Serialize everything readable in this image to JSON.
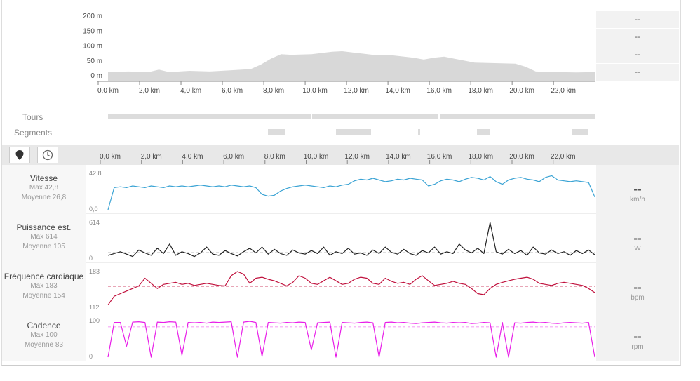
{
  "summary": {
    "values": [
      "--",
      "--",
      "--",
      "--"
    ]
  },
  "elevation": {
    "ytick_labels": [
      "200 m",
      "150 m",
      "100 m",
      "50 m",
      "0 m"
    ],
    "xtick_labels": [
      "0,0 km",
      "2,0 km",
      "4,0 km",
      "6,0 km",
      "8,0 km",
      "10,0 km",
      "12,0 km",
      "14,0 km",
      "16,0 km",
      "18,0 km",
      "20,0 km",
      "22,0 km"
    ],
    "fill_color": "#d8d8d8"
  },
  "laps": {
    "label": "Tours"
  },
  "segments": {
    "label": "Segments"
  },
  "toolbar": {
    "distance_icon": "map-pin-icon",
    "time_icon": "clock-icon",
    "xtick_labels": [
      "0,0 km",
      "2,0 km",
      "4,0 km",
      "6,0 km",
      "8,0 km",
      "10,0 km",
      "12,0 km",
      "14,0 km",
      "16,0 km",
      "18,0 km",
      "20,0 km",
      "22,0 km"
    ]
  },
  "metrics": [
    {
      "title": "Vitesse",
      "max": "Max 42,8",
      "avg": "Moyenne 26,8",
      "axis_top": "42,8",
      "axis_bottom": "0,0",
      "current": "--",
      "unit": "km/h",
      "color": "#3aa3d4"
    },
    {
      "title": "Puissance est.",
      "max": "Max 614",
      "avg": "Moyenne 105",
      "axis_top": "614",
      "axis_bottom": "0",
      "current": "--",
      "unit": "W",
      "color": "#222222"
    },
    {
      "title": "Fréquence cardiaque",
      "max": "Max 183",
      "avg": "Moyenne 154",
      "axis_top": "183",
      "axis_bottom": "112",
      "current": "--",
      "unit": "bpm",
      "color": "#c0103c"
    },
    {
      "title": "Cadence",
      "max": "Max 100",
      "avg": "Moyenne 83",
      "axis_top": "100",
      "axis_bottom": "0",
      "current": "--",
      "unit": "rpm",
      "color": "#e81ee8"
    }
  ],
  "chart_data": [
    {
      "type": "area",
      "xlabel": "",
      "ylabel": "",
      "xlim": [
        0,
        23.9
      ],
      "ylim": [
        0,
        200
      ],
      "x": [
        0,
        1,
        2,
        2.5,
        3,
        4,
        5,
        6,
        7,
        7.5,
        8,
        8.5,
        9,
        10,
        11,
        11.5,
        12,
        13,
        14,
        15,
        15.5,
        16,
        16.5,
        17,
        18,
        19,
        20,
        20.5,
        21,
        22,
        23,
        23.9
      ],
      "y": [
        10,
        12,
        10,
        18,
        10,
        14,
        12,
        16,
        20,
        35,
        55,
        70,
        68,
        70,
        78,
        80,
        76,
        68,
        66,
        58,
        52,
        58,
        62,
        55,
        42,
        40,
        38,
        28,
        12,
        10,
        9,
        10
      ]
    },
    {
      "type": "line",
      "title": "Vitesse",
      "ylim": [
        0,
        42.8
      ],
      "xlim": [
        0,
        23.9
      ],
      "series": [
        {
          "name": "Vitesse",
          "values": [
            0,
            26,
            27,
            26,
            28,
            27,
            26,
            28,
            27,
            26,
            28,
            27,
            28,
            27,
            28,
            29,
            28,
            27,
            28,
            27,
            29,
            28,
            27,
            28,
            26,
            18,
            16,
            17,
            22,
            25,
            27,
            28,
            29,
            28,
            27,
            26,
            28,
            27,
            29,
            30,
            34,
            36,
            35,
            37,
            35,
            33,
            34,
            36,
            35,
            37,
            36,
            35,
            28,
            30,
            34,
            36,
            35,
            33,
            36,
            38,
            37,
            35,
            39,
            33,
            30,
            35,
            37,
            38,
            36,
            35,
            33,
            38,
            40,
            35,
            34,
            33,
            34,
            33,
            32,
            15
          ]
        }
      ],
      "average": 26.8
    },
    {
      "type": "line",
      "title": "Puissance est.",
      "ylim": [
        0,
        614
      ],
      "xlim": [
        0,
        23.9
      ],
      "series": [
        {
          "name": "Puissance est.",
          "values": [
            60,
            90,
            120,
            80,
            40,
            150,
            100,
            60,
            180,
            90,
            250,
            60,
            120,
            90,
            40,
            100,
            200,
            80,
            60,
            140,
            90,
            50,
            120,
            180,
            100,
            200,
            80,
            160,
            90,
            60,
            150,
            100,
            80,
            140,
            90,
            200,
            60,
            120,
            90,
            180,
            80,
            100,
            60,
            150,
            90,
            200,
            110,
            80,
            160,
            90,
            60,
            140,
            100,
            200,
            80,
            120,
            90,
            250,
            150,
            100,
            180,
            90,
            614,
            120,
            80,
            160,
            90,
            140,
            60,
            200,
            100,
            80,
            150,
            90,
            120,
            60,
            140,
            90,
            150,
            70
          ]
        }
      ],
      "average": 105
    },
    {
      "type": "line",
      "title": "Fréquence cardiaque",
      "ylim": [
        112,
        183
      ],
      "xlim": [
        0,
        23.9
      ],
      "series": [
        {
          "name": "Fréquence cardiaque",
          "values": [
            118,
            135,
            140,
            145,
            150,
            155,
            170,
            160,
            150,
            158,
            160,
            162,
            158,
            160,
            156,
            158,
            160,
            158,
            156,
            155,
            175,
            183,
            178,
            160,
            170,
            172,
            168,
            165,
            160,
            155,
            162,
            175,
            170,
            160,
            158,
            165,
            172,
            165,
            158,
            160,
            168,
            172,
            170,
            160,
            158,
            170,
            164,
            160,
            162,
            158,
            168,
            175,
            165,
            156,
            158,
            160,
            164,
            160,
            158,
            150,
            140,
            138,
            150,
            158,
            162,
            165,
            168,
            170,
            172,
            168,
            160,
            158,
            156,
            160,
            162,
            160,
            158,
            156,
            150,
            142
          ]
        }
      ],
      "average": 154
    },
    {
      "type": "line",
      "title": "Cadence",
      "ylim": [
        0,
        100
      ],
      "xlim": [
        0,
        23.9
      ],
      "series": [
        {
          "name": "Cadence",
          "values": [
            0,
            95,
            95,
            30,
            96,
            97,
            95,
            0,
            96,
            95,
            97,
            96,
            5,
            95,
            94,
            95,
            93,
            96,
            95,
            96,
            97,
            0,
            96,
            98,
            95,
            2,
            95,
            94,
            93,
            95,
            94,
            96,
            95,
            20,
            94,
            95,
            96,
            0,
            95,
            94,
            93,
            95,
            96,
            94,
            0,
            95,
            96,
            94,
            95,
            93,
            92,
            94,
            95,
            96,
            94,
            93,
            95,
            94,
            95,
            92,
            93,
            95,
            94,
            0,
            95,
            0,
            94,
            93,
            95,
            96,
            94,
            95,
            93,
            92,
            94,
            95,
            94,
            93,
            95,
            0
          ]
        }
      ],
      "average": 83
    }
  ]
}
